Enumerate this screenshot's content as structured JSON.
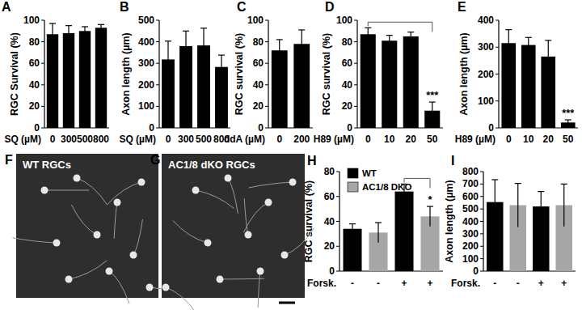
{
  "chart_data": [
    {
      "type": "bar",
      "title": "A",
      "y_label": "RGC Survival (%)",
      "x_label": "SQ (µM)",
      "categories": [
        "0",
        "300",
        "500",
        "800"
      ],
      "values": [
        87,
        88,
        90,
        93
      ],
      "errors": [
        10,
        7,
        4,
        3
      ],
      "color": "#000000",
      "ylim": [
        0,
        100
      ],
      "yticks": [
        0,
        20,
        40,
        60,
        80,
        100
      ]
    },
    {
      "type": "bar",
      "title": "B",
      "y_label": "Axon length (µm)",
      "x_label": "SQ (µM)",
      "categories": [
        "0",
        "300",
        "500",
        "800"
      ],
      "values": [
        318,
        380,
        383,
        283
      ],
      "errors": [
        85,
        70,
        80,
        55
      ],
      "color": "#000000",
      "ylim": [
        0,
        500
      ],
      "yticks": [
        0,
        100,
        200,
        300,
        400,
        500
      ]
    },
    {
      "type": "bar",
      "title": "C",
      "y_label": "RGC survival (%)",
      "x_label": "ddA (µM)",
      "categories": [
        "0",
        "200"
      ],
      "values": [
        72,
        78
      ],
      "errors": [
        10,
        13
      ],
      "color": "#000000",
      "ylim": [
        0,
        100
      ],
      "yticks": [
        0,
        20,
        40,
        60,
        80,
        100
      ]
    },
    {
      "type": "bar",
      "title": "D",
      "y_label": "RGC survival (%)",
      "x_label": "H89 (µM)",
      "categories": [
        "0",
        "10",
        "20",
        "50"
      ],
      "values": [
        87,
        81,
        85,
        16
      ],
      "errors": [
        6,
        5,
        4,
        8
      ],
      "color": "#000000",
      "ylim": [
        0,
        100
      ],
      "yticks": [
        0,
        20,
        40,
        60,
        80,
        100
      ],
      "annotations": [
        {
          "text": "***",
          "from": "0",
          "to": "50"
        }
      ]
    },
    {
      "type": "bar",
      "title": "E",
      "y_label": "Axon length (µm)",
      "x_label": "H89 (µM)",
      "categories": [
        "0",
        "10",
        "20",
        "50"
      ],
      "values": [
        315,
        308,
        265,
        20
      ],
      "errors": [
        50,
        28,
        60,
        10
      ],
      "color": "#000000",
      "ylim": [
        0,
        400
      ],
      "yticks": [
        0,
        100,
        200,
        300,
        400
      ],
      "annotations": [
        {
          "text": "***",
          "to": "50"
        }
      ]
    },
    {
      "type": "bar",
      "title": "H",
      "y_label": "RGC survival (%)",
      "x_label": "Forsk.",
      "categories": [
        "-",
        "+"
      ],
      "series": [
        {
          "name": "WT",
          "color": "#000000",
          "values": [
            34,
            64
          ],
          "errors": [
            4,
            6
          ]
        },
        {
          "name": "AC1/8 DKO",
          "color": "#a6a6a6",
          "values": [
            31,
            44
          ],
          "errors": [
            8,
            8
          ]
        }
      ],
      "ylim": [
        0,
        80
      ],
      "yticks": [
        0,
        20,
        40,
        60,
        80
      ],
      "legend": "top-left",
      "annotations": [
        {
          "text": "*",
          "category": "+",
          "from": "WT",
          "to": "AC1/8 DKO"
        }
      ]
    },
    {
      "type": "bar",
      "title": "I",
      "y_label": "Axon length (µm)",
      "x_label": "Forsk.",
      "categories": [
        "-",
        "+"
      ],
      "series": [
        {
          "name": "WT",
          "color": "#000000",
          "values": [
            555,
            520
          ],
          "errors": [
            180,
            120
          ]
        },
        {
          "name": "AC1/8 DKO",
          "color": "#a6a6a6",
          "values": [
            530,
            530
          ],
          "errors": [
            175,
            170
          ]
        }
      ],
      "ylim": [
        0,
        800
      ],
      "yticks": [
        0,
        100,
        200,
        300,
        400,
        500,
        600,
        700,
        800
      ]
    }
  ],
  "images": [
    {
      "panel": "F",
      "label": "WT RGCs"
    },
    {
      "panel": "G",
      "label": "AC1/8 dKO RGCs"
    }
  ]
}
